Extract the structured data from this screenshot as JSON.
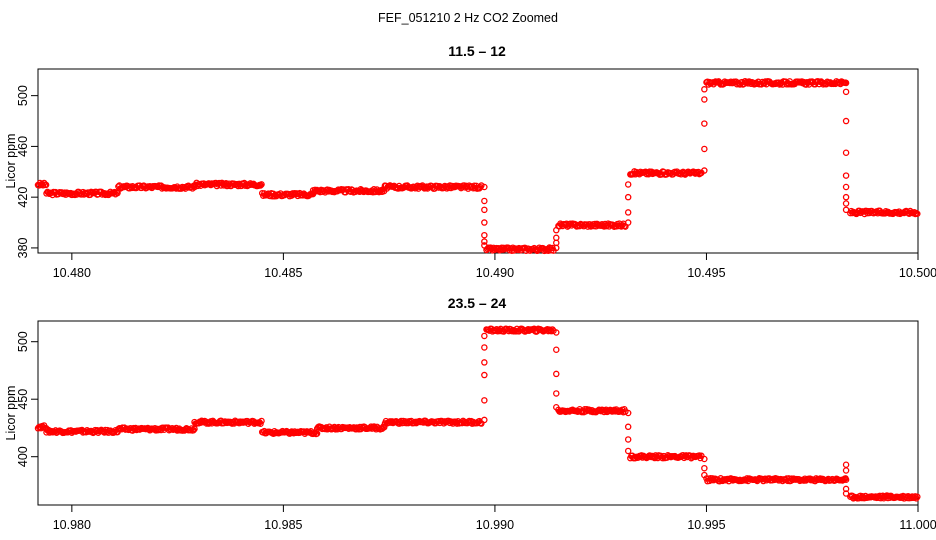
{
  "figure": {
    "title": "FEF_051210  2 Hz CO2 Zoomed"
  },
  "colors": {
    "points": "#ff0000",
    "axes": "#000000",
    "background": "#ffffff"
  },
  "chart_data": [
    {
      "type": "scatter",
      "title": "11.5 – 12",
      "xlabel": "",
      "ylabel": "Licor ppm",
      "xlim": [
        10.4792,
        10.5
      ],
      "ylim": [
        376,
        521
      ],
      "xticks": [
        "10.480",
        "10.485",
        "10.490",
        "10.495",
        "10.500"
      ],
      "xtick_values": [
        10.48,
        10.485,
        10.49,
        10.495,
        10.5
      ],
      "yticks": [
        "380",
        "420",
        "460",
        "500"
      ],
      "ytick_values": [
        380,
        420,
        460,
        500
      ],
      "grid": false,
      "series": [
        {
          "marker": "open-circle",
          "color": "#ff0000",
          "segments": [
            {
              "x": [
                10.4792,
                10.4794
              ],
              "y": 430
            },
            {
              "x": [
                10.4794,
                10.4811
              ],
              "y": 423
            },
            {
              "x": [
                10.4811,
                10.4829
              ],
              "y": 428
            },
            {
              "x": [
                10.4829,
                10.4845
              ],
              "y": 430
            },
            {
              "x": [
                10.4845,
                10.4857
              ],
              "y": 422
            },
            {
              "x": [
                10.4857,
                10.4874
              ],
              "y": 425
            },
            {
              "x": [
                10.4874,
                10.4897
              ],
              "y": 428
            },
            {
              "x": [
                10.4898,
                10.4914
              ],
              "y": 379
            },
            {
              "x": [
                10.4915,
                10.4931
              ],
              "y": 398
            },
            {
              "x": [
                10.4932,
                10.4949
              ],
              "y": 439
            },
            {
              "x": [
                10.495,
                10.4983
              ],
              "y": 510
            },
            {
              "x": [
                10.4984,
                10.5
              ],
              "y": 408
            }
          ],
          "transitions": [
            {
              "x": 10.48975,
              "y": [
                428,
                385,
                390,
                400,
                410,
                417,
                382
              ]
            },
            {
              "x": 10.49145,
              "y": [
                380,
                384,
                388,
                394
              ]
            },
            {
              "x": 10.49315,
              "y": [
                400,
                408,
                420,
                430
              ]
            },
            {
              "x": 10.49495,
              "y": [
                441,
                458,
                478,
                497,
                505
              ]
            },
            {
              "x": 10.4983,
              "y": [
                510,
                503,
                480,
                455,
                437,
                428,
                420,
                415,
                410
              ]
            }
          ]
        }
      ]
    },
    {
      "type": "scatter",
      "title": "23.5 – 24",
      "xlabel": "",
      "ylabel": "Licor ppm",
      "xlim": [
        10.9792,
        11.0
      ],
      "ylim": [
        358,
        518
      ],
      "xticks": [
        "10.980",
        "10.985",
        "10.990",
        "10.995",
        "11.000"
      ],
      "xtick_values": [
        10.98,
        10.985,
        10.99,
        10.995,
        11.0
      ],
      "yticks": [
        "400",
        "450",
        "500"
      ],
      "ytick_values": [
        400,
        450,
        500
      ],
      "grid": false,
      "series": [
        {
          "marker": "open-circle",
          "color": "#ff0000",
          "segments": [
            {
              "x": [
                10.9792,
                10.9794
              ],
              "y": 426
            },
            {
              "x": [
                10.9794,
                10.9811
              ],
              "y": 422
            },
            {
              "x": [
                10.9811,
                10.9829
              ],
              "y": 424
            },
            {
              "x": [
                10.9829,
                10.9845
              ],
              "y": 430
            },
            {
              "x": [
                10.9845,
                10.9858
              ],
              "y": 421
            },
            {
              "x": [
                10.9858,
                10.9874
              ],
              "y": 425
            },
            {
              "x": [
                10.9874,
                10.9897
              ],
              "y": 430
            },
            {
              "x": [
                10.9898,
                10.9914
              ],
              "y": 510
            },
            {
              "x": [
                10.9915,
                10.9931
              ],
              "y": 440
            },
            {
              "x": [
                10.9932,
                10.9949
              ],
              "y": 400
            },
            {
              "x": [
                10.995,
                10.9983
              ],
              "y": 380
            },
            {
              "x": [
                10.9984,
                11.0
              ],
              "y": 365
            }
          ],
          "transitions": [
            {
              "x": 10.98975,
              "y": [
                432,
                449,
                471,
                482,
                495,
                505
              ]
            },
            {
              "x": 10.99145,
              "y": [
                508,
                493,
                472,
                455,
                443
              ]
            },
            {
              "x": 10.99315,
              "y": [
                438,
                426,
                415,
                405
              ]
            },
            {
              "x": 10.99495,
              "y": [
                398,
                390,
                384
              ]
            },
            {
              "x": 10.9983,
              "y": [
                380,
                388,
                393,
                372,
                368
              ]
            }
          ]
        }
      ]
    }
  ]
}
